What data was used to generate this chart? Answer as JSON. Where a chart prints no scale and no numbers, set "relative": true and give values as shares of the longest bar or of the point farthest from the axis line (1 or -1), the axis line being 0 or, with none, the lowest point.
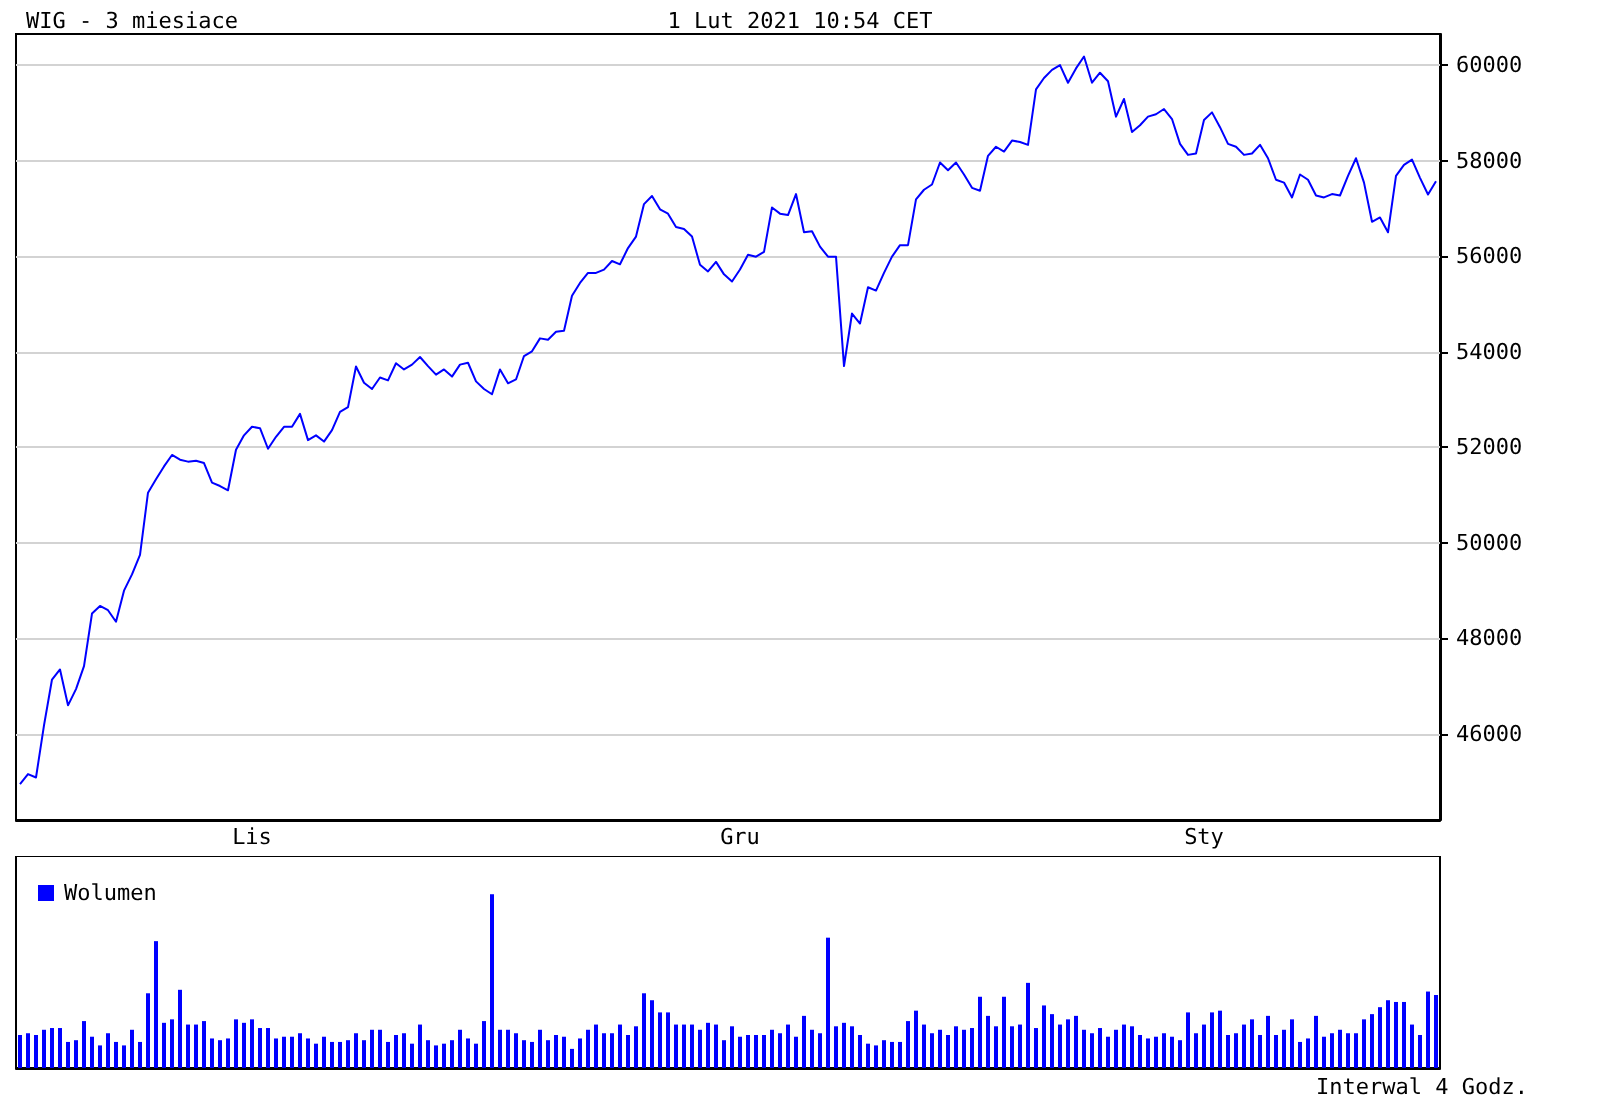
{
  "chart_data": [
    {
      "type": "line",
      "title": "WIG - 3 miesiace",
      "subtitle": "1 Lut 2021 10:54 CET",
      "categories": [
        null,
        null,
        null,
        null,
        null,
        null,
        null,
        null,
        null,
        null,
        null,
        null,
        null,
        null,
        null,
        null,
        null,
        null,
        null,
        null,
        null,
        null,
        null,
        null,
        null,
        null,
        null,
        null,
        null,
        "Lis",
        null,
        null,
        null,
        null,
        null,
        null,
        null,
        null,
        null,
        null,
        null,
        null,
        null,
        null,
        null,
        null,
        null,
        null,
        null,
        null,
        null,
        null,
        null,
        null,
        null,
        null,
        null,
        null,
        null,
        null,
        null,
        null,
        null,
        null,
        null,
        null,
        null,
        null,
        null,
        null,
        null,
        null,
        null,
        null,
        null,
        null,
        null,
        null,
        null,
        null,
        null,
        null,
        null,
        null,
        null,
        null,
        null,
        null,
        null,
        null,
        "Gru",
        null,
        null,
        null,
        null,
        null,
        null,
        null,
        null,
        null,
        null,
        null,
        null,
        null,
        null,
        null,
        null,
        null,
        null,
        null,
        null,
        null,
        null,
        null,
        null,
        null,
        null,
        null,
        null,
        null,
        null,
        null,
        null,
        null,
        null,
        null,
        null,
        null,
        null,
        null,
        null,
        null,
        null,
        null,
        null,
        null,
        null,
        null,
        null,
        null,
        null,
        null,
        null,
        null,
        null,
        null,
        null,
        null,
        "Sty",
        null,
        null,
        null,
        null,
        null,
        null,
        null,
        null,
        null,
        null,
        null,
        null,
        null,
        null,
        null,
        null,
        null,
        null,
        null,
        null,
        null,
        null,
        null,
        null,
        null,
        null,
        null,
        null,
        null
      ],
      "ylim": [
        44200,
        60650
      ],
      "yticks": [
        46000,
        48000,
        50000,
        52000,
        54000,
        56000,
        58000,
        60000
      ],
      "grid": "y",
      "series": [
        {
          "color": "#0000ff",
          "values": [
            44950,
            45160,
            45090,
            46180,
            47140,
            47350,
            46600,
            46940,
            47420,
            48520,
            48680,
            48590,
            48350,
            49000,
            49340,
            49750,
            51050,
            51330,
            51600,
            51840,
            51740,
            51700,
            51720,
            51670,
            51260,
            51190,
            51100,
            51950,
            52250,
            52430,
            52400,
            51970,
            52220,
            52430,
            52430,
            52700,
            52150,
            52250,
            52120,
            52360,
            52740,
            52840,
            53690,
            53350,
            53220,
            53460,
            53400,
            53760,
            53630,
            53730,
            53890,
            53700,
            53520,
            53630,
            53480,
            53730,
            53770,
            53380,
            53220,
            53110,
            53630,
            53340,
            53420,
            53910,
            54010,
            54280,
            54250,
            54420,
            54440,
            55170,
            55440,
            55650,
            55650,
            55720,
            55900,
            55830,
            56170,
            56410,
            57090,
            57260,
            56980,
            56890,
            56610,
            56570,
            56410,
            55820,
            55680,
            55880,
            55620,
            55470,
            55720,
            56030,
            55990,
            56090,
            57020,
            56890,
            56860,
            57300,
            56500,
            56520,
            56200,
            55990,
            55990,
            53700,
            54800,
            54590,
            55350,
            55280,
            55650,
            55990,
            56230,
            56230,
            57190,
            57390,
            57500,
            57960,
            57800,
            57960,
            57710,
            57430,
            57370,
            58100,
            58290,
            58190,
            58420,
            58390,
            58330,
            59490,
            59730,
            59900,
            60000,
            59630,
            59930,
            60180,
            59630,
            59840,
            59660,
            58920,
            59290,
            58600,
            58740,
            58920,
            58970,
            59080,
            58870,
            58350,
            58120,
            58150,
            58850,
            59010,
            58700,
            58350,
            58290,
            58120,
            58150,
            58330,
            58050,
            57600,
            57540,
            57230,
            57710,
            57600,
            57270,
            57230,
            57300,
            57270,
            57680,
            58050,
            57540,
            56720,
            56810,
            56500,
            57680,
            57910,
            58020,
            57640,
            57290,
            57570
          ]
        }
      ]
    },
    {
      "type": "bar",
      "relative": true,
      "legend": "top left",
      "categories": [
        null,
        null,
        null,
        null,
        null,
        null,
        null,
        null,
        null,
        null,
        null,
        null,
        null,
        null,
        null,
        null,
        null,
        null,
        null,
        null,
        null,
        null,
        null,
        null,
        null,
        null,
        null,
        null,
        null,
        null,
        null,
        null,
        null,
        null,
        null,
        null,
        null,
        null,
        null,
        null,
        null,
        null,
        null,
        null,
        null,
        null,
        null,
        null,
        null,
        null,
        null,
        null,
        null,
        null,
        null,
        null,
        null,
        null,
        null,
        null,
        null,
        null,
        null,
        null,
        null,
        null,
        null,
        null,
        null,
        null,
        null,
        null,
        null,
        null,
        null,
        null,
        null,
        null,
        null,
        null,
        null,
        null,
        null,
        null,
        null,
        null,
        null,
        null,
        null,
        null,
        null,
        null,
        null,
        null,
        null,
        null,
        null,
        null,
        null,
        null,
        null,
        null,
        null,
        null,
        null,
        null,
        null,
        null,
        null,
        null,
        null,
        null,
        null,
        null,
        null,
        null,
        null,
        null,
        null,
        null,
        null,
        null,
        null,
        null,
        null,
        null,
        null,
        null,
        null,
        null,
        null,
        null,
        null,
        null,
        null,
        null,
        null,
        null,
        null,
        null,
        null,
        null,
        null,
        null,
        null,
        null,
        null,
        null,
        null,
        null,
        null,
        null,
        null,
        null,
        null,
        null,
        null,
        null,
        null,
        null,
        null,
        null,
        null,
        null,
        null,
        null,
        null,
        null,
        null,
        null,
        null,
        null,
        null,
        null,
        null,
        null,
        null,
        null
      ],
      "annotations": [
        "Interwal 4 Godz."
      ],
      "series": [
        {
          "name": "Wolumen",
          "color": "#0000ff",
          "values": [
            0.19,
            0.2,
            0.19,
            0.22,
            0.23,
            0.23,
            0.15,
            0.16,
            0.27,
            0.18,
            0.13,
            0.2,
            0.15,
            0.13,
            0.22,
            0.15,
            0.43,
            0.73,
            0.26,
            0.28,
            0.45,
            0.25,
            0.25,
            0.27,
            0.17,
            0.16,
            0.17,
            0.28,
            0.26,
            0.28,
            0.23,
            0.23,
            0.17,
            0.18,
            0.18,
            0.2,
            0.17,
            0.14,
            0.18,
            0.15,
            0.15,
            0.16,
            0.2,
            0.16,
            0.22,
            0.22,
            0.15,
            0.19,
            0.2,
            0.14,
            0.25,
            0.16,
            0.13,
            0.14,
            0.16,
            0.22,
            0.17,
            0.14,
            0.27,
            1,
            0.22,
            0.22,
            0.2,
            0.16,
            0.15,
            0.22,
            0.16,
            0.19,
            0.18,
            0.11,
            0.17,
            0.22,
            0.25,
            0.2,
            0.2,
            0.25,
            0.19,
            0.24,
            0.43,
            0.39,
            0.32,
            0.32,
            0.25,
            0.25,
            0.25,
            0.22,
            0.26,
            0.25,
            0.16,
            0.24,
            0.18,
            0.19,
            0.19,
            0.19,
            0.22,
            0.2,
            0.25,
            0.18,
            0.3,
            0.22,
            0.2,
            0.75,
            0.24,
            0.26,
            0.24,
            0.19,
            0.14,
            0.13,
            0.16,
            0.15,
            0.15,
            0.27,
            0.33,
            0.25,
            0.2,
            0.22,
            0.19,
            0.24,
            0.22,
            0.23,
            0.41,
            0.3,
            0.24,
            0.41,
            0.24,
            0.25,
            0.49,
            0.23,
            0.36,
            0.31,
            0.25,
            0.28,
            0.3,
            0.22,
            0.2,
            0.23,
            0.18,
            0.22,
            0.25,
            0.24,
            0.19,
            0.17,
            0.18,
            0.2,
            0.18,
            0.16,
            0.32,
            0.2,
            0.25,
            0.32,
            0.33,
            0.19,
            0.2,
            0.25,
            0.28,
            0.19,
            0.3,
            0.19,
            0.22,
            0.28,
            0.15,
            0.17,
            0.3,
            0.18,
            0.2,
            0.22,
            0.2,
            0.2,
            0.28,
            0.31,
            0.35,
            0.39,
            0.38,
            0.38,
            0.25,
            0.19,
            0.44,
            0.42
          ]
        }
      ]
    }
  ]
}
